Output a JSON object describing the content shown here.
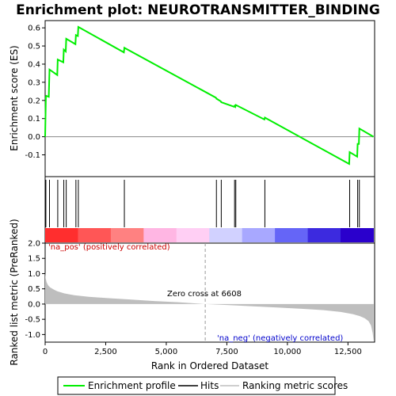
{
  "title": "Enrichment plot: NEUROTRANSMITTER_BINDING",
  "colors": {
    "enrichment_line": "#00ee00",
    "hits": "#000000",
    "metric_fill": "#bebebe",
    "zero_cross": "#999999",
    "pos_label": "#cc0000",
    "neg_label": "#0000cc",
    "background_frame": "#e8e8e8"
  },
  "chart_data": [
    {
      "type": "line",
      "panel": "enrichment-score",
      "ylabel": "Enrichment score (ES)",
      "ylim": [
        -0.22,
        0.64
      ],
      "xlim": [
        0,
        13600
      ],
      "yticks": [
        "-0.1",
        "0.0",
        "0.1",
        "0.2",
        "0.3",
        "0.4",
        "0.5",
        "0.6"
      ],
      "ytick_values": [
        -0.1,
        0.0,
        0.1,
        0.2,
        0.3,
        0.4,
        0.5,
        0.6
      ],
      "series": [
        {
          "x": [
            0,
            30,
            50,
            150,
            180,
            500,
            520,
            750,
            770,
            850,
            870,
            1250,
            1270,
            1350,
            1370,
            3250,
            3270,
            7050,
            7070,
            7250,
            7270,
            7800,
            7820,
            7850,
            7870,
            9050,
            9070,
            12550,
            12570,
            12880,
            12900,
            12950,
            12970,
            13550
          ],
          "y": [
            0.0,
            0.22,
            0.225,
            0.22,
            0.37,
            0.34,
            0.425,
            0.41,
            0.48,
            0.47,
            0.54,
            0.51,
            0.56,
            0.555,
            0.605,
            0.465,
            0.49,
            0.215,
            0.21,
            0.195,
            0.19,
            0.165,
            0.17,
            0.165,
            0.175,
            0.095,
            0.105,
            -0.15,
            -0.085,
            -0.11,
            -0.04,
            -0.04,
            0.045,
            0.0
          ]
        }
      ]
    },
    {
      "type": "scatter",
      "panel": "hits",
      "xlabel": "",
      "hit_positions": [
        30,
        180,
        520,
        770,
        870,
        1270,
        1370,
        3270,
        7070,
        7270,
        7820,
        7870,
        9070,
        12570,
        12900,
        12970
      ]
    },
    {
      "type": "area",
      "panel": "ranked-metric",
      "ylabel": "Ranked list metric (PreRanked)",
      "xlabel": "Rank in Ordered Dataset",
      "ylim": [
        -1.25,
        2.0
      ],
      "xlim": [
        0,
        13600
      ],
      "yticks": [
        "-1.0",
        "-0.5",
        "0.0",
        "0.5",
        "1.0",
        "1.5",
        "2.0"
      ],
      "ytick_values": [
        -1.0,
        -0.5,
        0.0,
        0.5,
        1.0,
        1.5,
        2.0
      ],
      "xticks": [
        "0",
        "2,500",
        "5,000",
        "7,500",
        "10,000",
        "12,500"
      ],
      "xtick_values": [
        0,
        2500,
        5000,
        7500,
        10000,
        12500
      ],
      "x": [
        0,
        20,
        60,
        120,
        200,
        350,
        500,
        800,
        1200,
        1800,
        2500,
        3500,
        4500,
        5500,
        6608,
        7500,
        8500,
        9500,
        10500,
        11500,
        12200,
        12700,
        13000,
        13200,
        13350,
        13450,
        13520,
        13560
      ],
      "values": [
        1.05,
        0.85,
        0.72,
        0.62,
        0.55,
        0.48,
        0.42,
        0.35,
        0.29,
        0.24,
        0.2,
        0.15,
        0.1,
        0.06,
        0.0,
        -0.03,
        -0.07,
        -0.11,
        -0.15,
        -0.2,
        -0.26,
        -0.33,
        -0.4,
        -0.47,
        -0.56,
        -0.7,
        -0.95,
        -1.22
      ],
      "zero_cross_label": "Zero cross at 6608",
      "zero_cross": 6608,
      "pos_label": "'na_pos' (positively correlated)",
      "neg_label": "'na_neg' (negatively correlated)"
    }
  ],
  "legend": {
    "items": [
      {
        "label": "Enrichment profile"
      },
      {
        "label": "Hits"
      },
      {
        "label": "Ranking metric scores"
      }
    ]
  }
}
